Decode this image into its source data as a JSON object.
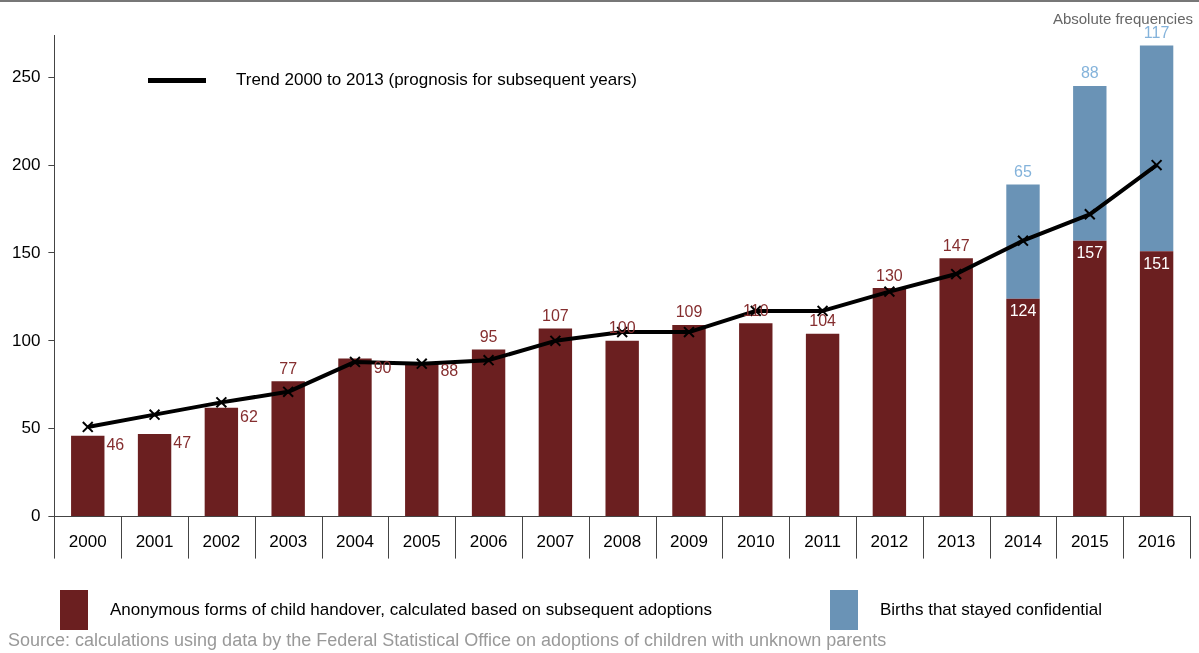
{
  "chart_data": {
    "type": "bar",
    "stacked": true,
    "ylabel": "Absolute frequencies",
    "categories": [
      "2000",
      "2001",
      "2002",
      "2003",
      "2004",
      "2005",
      "2006",
      "2007",
      "2008",
      "2009",
      "2010",
      "2011",
      "2012",
      "2013",
      "2014",
      "2015",
      "2016"
    ],
    "series": [
      {
        "name": "Anonymous forms of child handover, calculated based on subsequent adoptions",
        "color": "#6b1f20",
        "values": [
          46,
          47,
          62,
          77,
          90,
          88,
          95,
          107,
          100,
          109,
          110,
          104,
          130,
          147,
          124,
          157,
          151
        ],
        "value_labels": [
          "46",
          "47",
          "62",
          "77",
          "90",
          "88",
          "95",
          "107",
          "100",
          "109",
          "110",
          "104",
          "130",
          "147",
          "124",
          "157",
          "151"
        ]
      },
      {
        "name": "Births that stayed confidential",
        "color": "#6a93b6",
        "values": [
          null,
          null,
          null,
          null,
          null,
          null,
          null,
          null,
          null,
          null,
          null,
          null,
          null,
          null,
          65,
          88,
          117
        ],
        "value_labels": [
          null,
          null,
          null,
          null,
          null,
          null,
          null,
          null,
          null,
          null,
          null,
          null,
          null,
          null,
          "65",
          "88",
          "117"
        ]
      },
      {
        "type": "line",
        "name": "Trend 2000 to 2013 (prognosis for subsequent years)",
        "color": "#000000",
        "marker": "cross",
        "values": [
          51,
          58,
          65,
          71,
          88,
          87,
          89,
          100,
          105,
          105,
          117,
          117,
          128,
          138,
          157,
          172,
          200
        ]
      }
    ],
    "ylim": [
      0,
      274
    ],
    "yticks": [
      0,
      50,
      100,
      150,
      200,
      250
    ],
    "grid": false,
    "legend": "bottom",
    "annotations": [
      "Source: calculations using data by the Federal Statistical Office on adoptions of children with unknown parents"
    ]
  }
}
